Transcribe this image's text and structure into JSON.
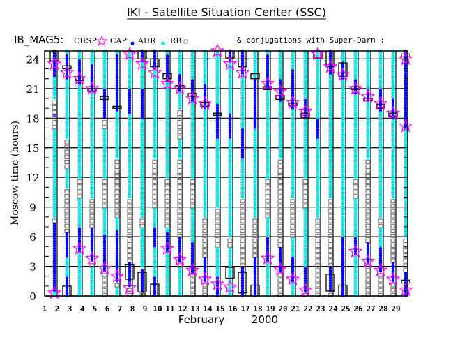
{
  "chart_data": {
    "type": "scatter",
    "title": "IKI - Satellite Situation Center (SSC)",
    "satellite": "IB_MAG5:",
    "legend": {
      "cusp": "CUSP",
      "cap": "CAP",
      "aur": "AUR",
      "rb": "RB",
      "conjugations": "& conjugations with Super-Darn :"
    },
    "ylabel": "Moscow time (hours)",
    "xlabel_month": "February",
    "xlabel_year": "2000",
    "ylim": [
      0,
      24
    ],
    "yticks": [
      "0",
      "3",
      "6",
      "9",
      "12",
      "15",
      "18",
      "21",
      "24"
    ],
    "xticks": [
      "1",
      "2",
      "3",
      "4",
      "5",
      "6",
      "7",
      "8",
      "9",
      "10",
      "11",
      "12",
      "13",
      "14",
      "15",
      "16",
      "17",
      "18",
      "19",
      "20",
      "21",
      "22",
      "23",
      "24",
      "25",
      "26",
      "27",
      "28",
      "29"
    ],
    "grid": true,
    "colors": {
      "cusp": "#ff00ff",
      "cap": "#0000ff",
      "aur": "#00e0e0",
      "rb": "#808080",
      "box": "#000000"
    },
    "passes": [
      {
        "cusp": [
          23.5,
          0.3
        ],
        "box": [
          [
            23.8,
            24.7
          ]
        ],
        "segs": [
          [
            "aur",
            20,
            24.8
          ],
          [
            "cap",
            22.2,
            24.8
          ],
          [
            "cap",
            18.1,
            18.4
          ],
          [
            "aur",
            8,
            17
          ],
          [
            "aur",
            1.5,
            4.5
          ],
          [
            "cap",
            0,
            7.5
          ],
          [
            "aur",
            0,
            0.4
          ]
        ]
      },
      {
        "cusp": [
          22.6
        ],
        "box": [
          [
            23,
            23.3
          ],
          [
            0,
            1
          ]
        ],
        "segs": [
          [
            "aur",
            16,
            24.8
          ],
          [
            "cap",
            22,
            24.5
          ],
          [
            "aur",
            11,
            13
          ],
          [
            "cap",
            0,
            6.5
          ],
          [
            "aur",
            2,
            4
          ]
        ]
      },
      {
        "cusp": [
          22,
          4.8
        ],
        "box": [
          [
            21.8,
            22.2
          ]
        ],
        "segs": [
          [
            "aur",
            12,
            24.8
          ],
          [
            "cap",
            21.5,
            24
          ],
          [
            "aur",
            0,
            10
          ],
          [
            "cap",
            4.5,
            7
          ]
        ]
      },
      {
        "cusp": [
          21,
          3.8
        ],
        "box": [
          [
            20.7,
            21
          ]
        ],
        "segs": [
          [
            "aur",
            10,
            24.8
          ],
          [
            "cap",
            20.6,
            23.5
          ],
          [
            "cap",
            3.5,
            7
          ],
          [
            "aur",
            0,
            3
          ]
        ]
      },
      {
        "cusp": [
          2.8
        ],
        "box": [
          [
            19.9,
            20.2
          ]
        ],
        "segs": [
          [
            "aur",
            12,
            24.8
          ],
          [
            "rb",
            17,
            20
          ],
          [
            "cap",
            18,
            21
          ],
          [
            "aur",
            4,
            9
          ],
          [
            "cap",
            2.5,
            6.2
          ],
          [
            "rb",
            0,
            2.4
          ]
        ]
      },
      {
        "cusp": [
          2
        ],
        "box": [
          [
            19,
            19.2
          ]
        ],
        "segs": [
          [
            "aur",
            14,
            24.8
          ],
          [
            "cap",
            18.8,
            24.5
          ],
          [
            "aur",
            2,
            8
          ],
          [
            "cap",
            1.5,
            6.8
          ],
          [
            "aur",
            0,
            1
          ]
        ]
      },
      {
        "cusp": [
          24.5,
          0.8
        ],
        "box": [
          [
            1.7,
            3.2
          ]
        ],
        "segs": [
          [
            "aur",
            10,
            24.8
          ],
          [
            "cap",
            18.5,
            21
          ],
          [
            "rb",
            4,
            9
          ],
          [
            "cap",
            1,
            3.5
          ],
          [
            "rb",
            0,
            0.6
          ]
        ]
      },
      {
        "cusp": [
          23.5
        ],
        "box": [
          [
            24,
            24.8
          ],
          [
            0.4,
            2.4
          ]
        ],
        "segs": [
          [
            "aur",
            8,
            24.8
          ],
          [
            "cap",
            23.8,
            24.8
          ],
          [
            "cap",
            18,
            21
          ],
          [
            "aur",
            3,
            7
          ],
          [
            "cap",
            0.3,
            2.8
          ]
        ]
      },
      {
        "cusp": [
          22.6
        ],
        "box": [
          [
            23.2,
            24
          ],
          [
            0,
            1.2
          ]
        ],
        "segs": [
          [
            "aur",
            14,
            24.8
          ],
          [
            "cap",
            23,
            24.8
          ],
          [
            "aur",
            2,
            9
          ],
          [
            "cap",
            0,
            2
          ],
          [
            "cap",
            5,
            7
          ]
        ]
      },
      {
        "cusp": [
          21.5,
          4.8
        ],
        "box": [
          [
            22,
            22.5
          ]
        ],
        "segs": [
          [
            "aur",
            12,
            24.8
          ],
          [
            "cap",
            21.8,
            24.5
          ],
          [
            "aur",
            0,
            7
          ],
          [
            "cap",
            4.5,
            6.5
          ]
        ]
      },
      {
        "cusp": [
          21,
          3.7
        ],
        "box": [
          [
            21,
            21.3
          ]
        ],
        "segs": [
          [
            "aur",
            14,
            24.8
          ],
          [
            "cap",
            20.8,
            22.5
          ],
          [
            "rb",
            16,
            19
          ],
          [
            "cap",
            3.5,
            6
          ],
          [
            "aur",
            0,
            3
          ]
        ]
      },
      {
        "cusp": [
          20,
          2.6
        ],
        "box": [
          [
            20.2,
            20.5
          ]
        ],
        "segs": [
          [
            "aur",
            12,
            24.8
          ],
          [
            "cap",
            19.8,
            22
          ],
          [
            "aur",
            4,
            9
          ],
          [
            "cap",
            2.3,
            5.5
          ]
        ]
      },
      {
        "cusp": [
          19.5,
          1.7
        ],
        "box": [
          [
            19.2,
            19.6
          ]
        ],
        "segs": [
          [
            "aur",
            8,
            24.8
          ],
          [
            "cap",
            19,
            21.5
          ],
          [
            "cap",
            1.5,
            4
          ]
        ]
      },
      {
        "cusp": [
          24.8,
          1.2
        ],
        "box": [
          [
            18.4,
            18.5
          ]
        ],
        "segs": [
          [
            "aur",
            9,
            24.8
          ],
          [
            "cap",
            16,
            19.5
          ],
          [
            "cap",
            0,
            3.5
          ],
          [
            "aur",
            2,
            5
          ]
        ]
      },
      {
        "cusp": [
          23.5,
          0.9
        ],
        "box": [
          [
            24.1,
            24.8
          ],
          [
            1.8,
            2.9
          ]
        ],
        "segs": [
          [
            "aur",
            6,
            24.8
          ],
          [
            "cap",
            23.8,
            24.8
          ],
          [
            "cap",
            16,
            18.5
          ],
          [
            "aur",
            0,
            5
          ]
        ]
      },
      {
        "cusp": [
          22.6
        ],
        "box": [
          [
            23.2,
            24.8
          ],
          [
            0.3,
            2.4
          ]
        ],
        "segs": [
          [
            "aur",
            10,
            24.8
          ],
          [
            "cap",
            22.5,
            24.8
          ],
          [
            "cap",
            14,
            17
          ],
          [
            "cap",
            0,
            3
          ]
        ]
      },
      {
        "cusp": [],
        "box": [
          [
            22,
            22.5
          ],
          [
            0,
            1.1
          ]
        ],
        "segs": [
          [
            "aur",
            8,
            24.8
          ],
          [
            "cap",
            17,
            22
          ],
          [
            "cap",
            0,
            4
          ]
        ]
      },
      {
        "cusp": [
          21.5,
          3.8
        ],
        "box": [
          [
            20.9,
            21.2
          ]
        ],
        "segs": [
          [
            "aur",
            12,
            24.8
          ],
          [
            "cap",
            21,
            24.5
          ],
          [
            "aur",
            0,
            8
          ],
          [
            "cap",
            3.5,
            6
          ]
        ]
      },
      {
        "cusp": [
          20.7,
          2.7
        ],
        "box": [
          [
            19.9,
            20.3
          ]
        ],
        "segs": [
          [
            "aur",
            14,
            24.8
          ],
          [
            "cap",
            19.8,
            22
          ],
          [
            "cap",
            2.5,
            5
          ]
        ]
      },
      {
        "cusp": [
          19.6,
          1.7
        ],
        "box": [
          [
            19.3,
            19.5
          ]
        ],
        "segs": [
          [
            "aur",
            10,
            24.8
          ],
          [
            "cap",
            19,
            23
          ],
          [
            "aur",
            0,
            6
          ],
          [
            "cap",
            1.5,
            4
          ]
        ]
      },
      {
        "cusp": [
          18.7,
          0.6
        ],
        "box": [
          [
            18.1,
            18.5
          ]
        ],
        "segs": [
          [
            "aur",
            12,
            24.8
          ],
          [
            "cap",
            18,
            20
          ],
          [
            "aur",
            3,
            9
          ],
          [
            "cap",
            0.5,
            3
          ]
        ]
      },
      {
        "cusp": [
          24.5
        ],
        "box": [
          [
            24.1,
            24.8
          ]
        ],
        "segs": [
          [
            "aur",
            8,
            24.8
          ],
          [
            "cap",
            16,
            18
          ],
          [
            "rb",
            0,
            7
          ]
        ]
      },
      {
        "cusp": [
          23.2
        ],
        "box": [
          [
            23.2,
            24.8
          ],
          [
            0.5,
            2.2
          ]
        ],
        "segs": [
          [
            "aur",
            10,
            24.8
          ],
          [
            "cap",
            22.5,
            24.8
          ],
          [
            "cap",
            0.5,
            3
          ]
        ]
      },
      {
        "cusp": [
          22.4
        ],
        "box": [
          [
            22.2,
            23.6
          ],
          [
            0,
            1.1
          ]
        ],
        "segs": [
          [
            "aur",
            6,
            24.8
          ],
          [
            "cap",
            22,
            23.6
          ],
          [
            "cap",
            0,
            6
          ]
        ]
      },
      {
        "cusp": [
          21,
          4.5
        ],
        "box": [
          [
            20.9,
            21.2
          ]
        ],
        "segs": [
          [
            "aur",
            12,
            24.8
          ],
          [
            "cap",
            20.5,
            22
          ],
          [
            "aur",
            0,
            10
          ],
          [
            "cap",
            4.3,
            6
          ]
        ]
      },
      {
        "cusp": [
          20.2,
          3.5
        ],
        "box": [
          [
            19.8,
            20
          ]
        ],
        "segs": [
          [
            "aur",
            14,
            24.8
          ],
          [
            "cap",
            19.7,
            21
          ],
          [
            "cap",
            3.3,
            5.5
          ]
        ]
      },
      {
        "cusp": [
          19.5,
          2.6
        ],
        "box": [
          [
            19,
            19.4
          ]
        ],
        "segs": [
          [
            "aur",
            8,
            24.8
          ],
          [
            "cap",
            18.8,
            21
          ],
          [
            "aur",
            4,
            7
          ],
          [
            "cap",
            2.4,
            5
          ]
        ]
      },
      {
        "cusp": [
          18.5,
          1.7
        ],
        "box": [
          [
            18.2,
            18.5
          ]
        ],
        "segs": [
          [
            "aur",
            10,
            24.8
          ],
          [
            "cap",
            18,
            20
          ],
          [
            "cap",
            1.5,
            3.5
          ]
        ]
      },
      {
        "cusp": [
          24,
          17.2,
          0.6
        ],
        "box": [
          [
            24.2,
            24.5
          ],
          [
            1.3,
            1.6
          ]
        ],
        "segs": [
          [
            "aur",
            6,
            24.8
          ],
          [
            "cap",
            17,
            24.8
          ],
          [
            "cap",
            0,
            2.5
          ]
        ]
      }
    ]
  }
}
